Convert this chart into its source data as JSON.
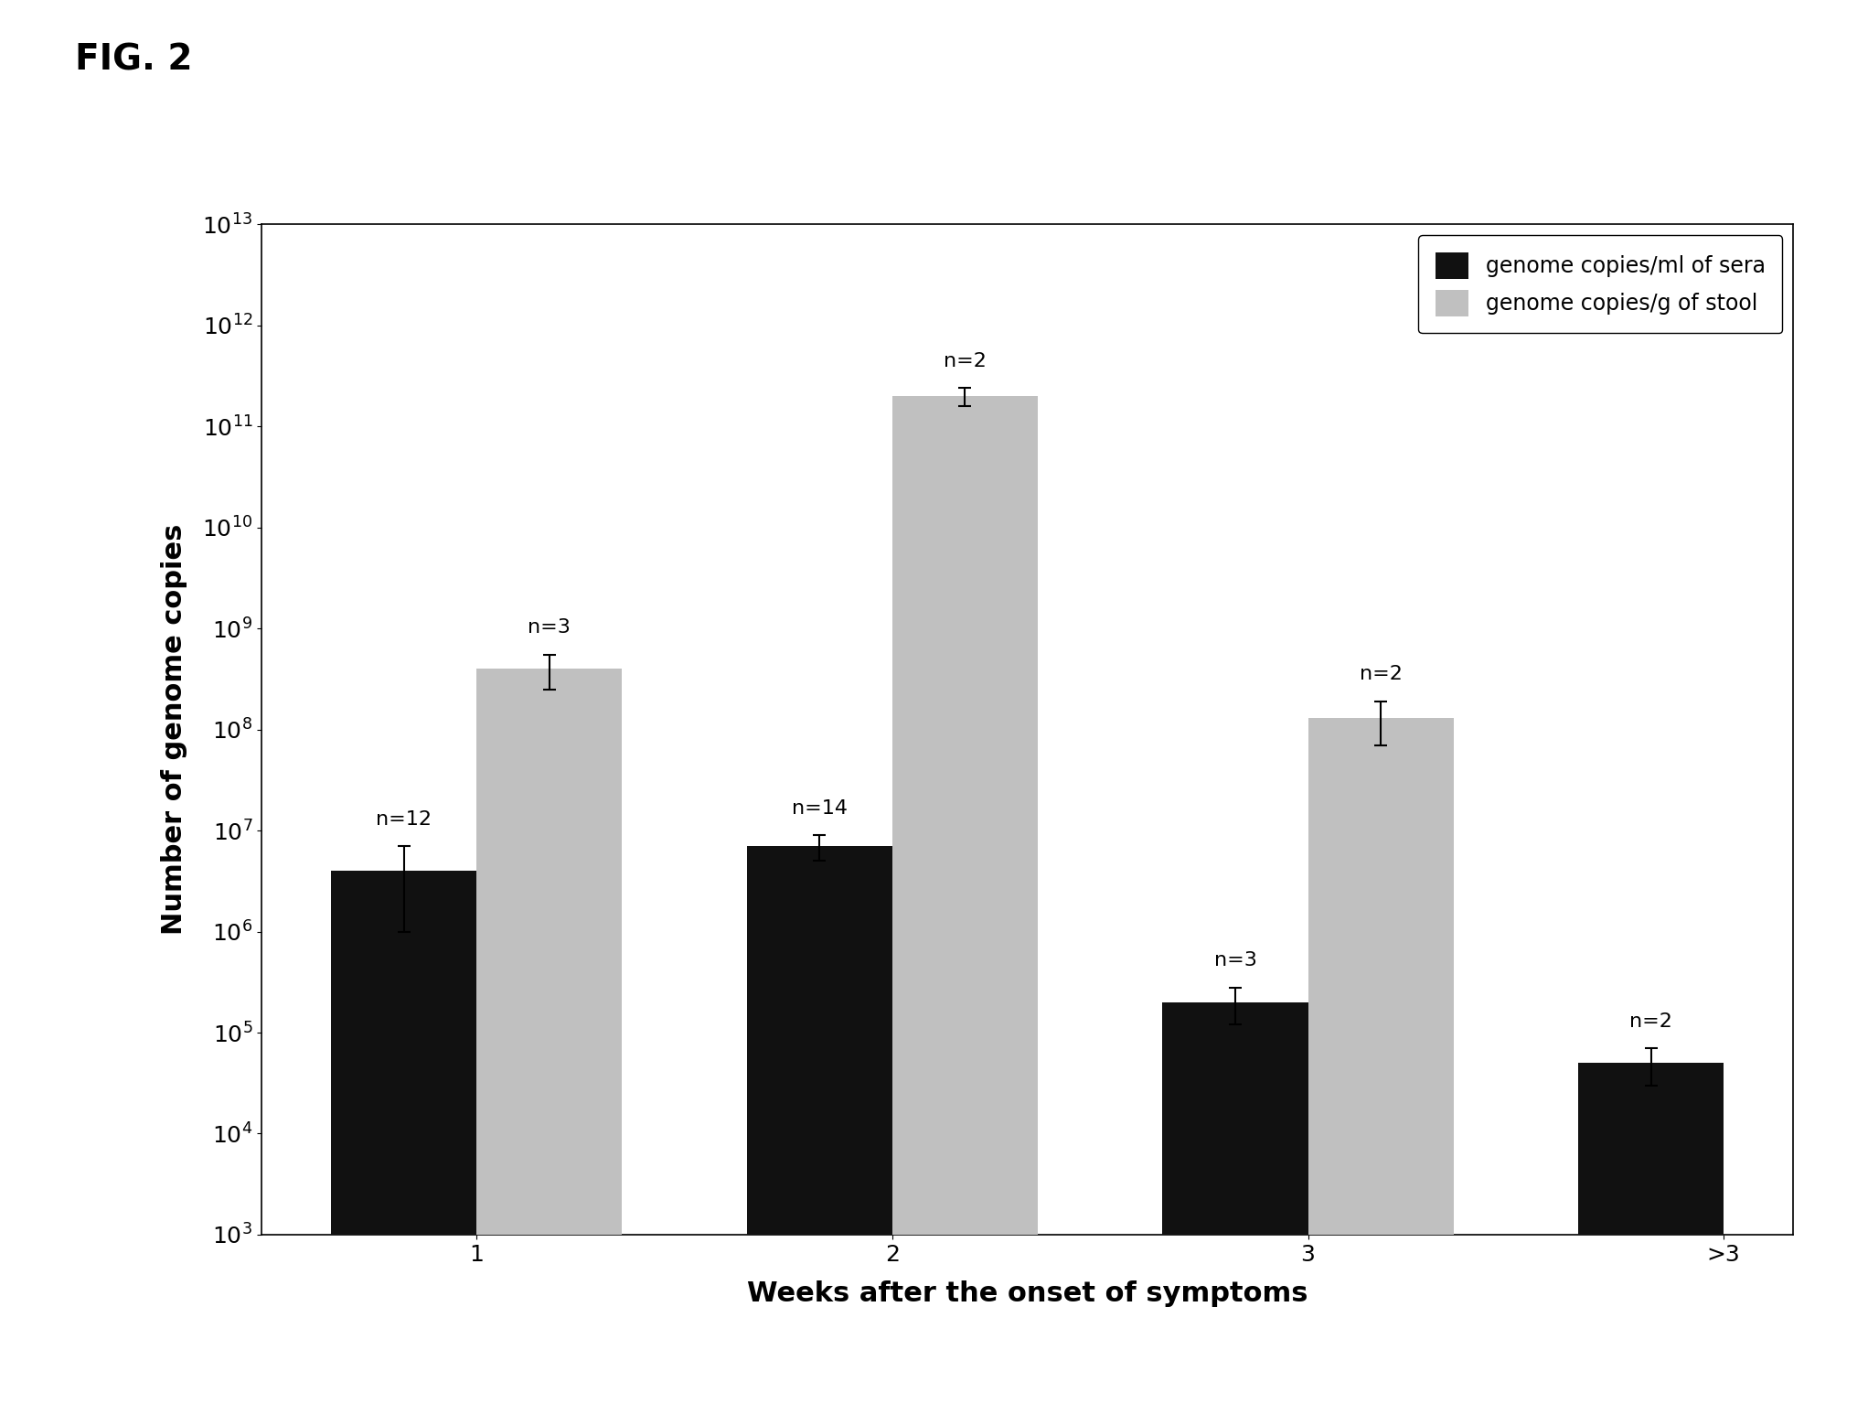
{
  "categories": [
    "1",
    "2",
    "3",
    ">3"
  ],
  "black_bars": [
    4000000.0,
    7000000.0,
    200000.0,
    50000.0
  ],
  "black_errors": [
    3000000.0,
    2000000.0,
    80000.0,
    20000.0
  ],
  "gray_bars": [
    400000000.0,
    200000000000.0,
    130000000.0,
    0
  ],
  "gray_errors": [
    150000000.0,
    40000000000.0,
    60000000.0,
    0
  ],
  "black_labels": [
    "n=12",
    "n=14",
    "n=3",
    "n=2"
  ],
  "gray_labels": [
    "n=3",
    "n=2",
    "n=2",
    ""
  ],
  "black_color": "#111111",
  "gray_color": "#c0c0c0",
  "xlabel": "Weeks after the onset of symptoms",
  "ylabel": "Number of genome copies",
  "legend_black": "genome copies/ml of sera",
  "legend_gray": "genome copies/g of stool",
  "fig_title": "FIG. 2",
  "ymin": 1000.0,
  "ymax": 10000000000000.0,
  "bar_width": 0.35,
  "xlabel_fontsize": 22,
  "ylabel_fontsize": 22,
  "tick_fontsize": 18,
  "legend_fontsize": 17,
  "label_fontsize": 16,
  "title_fontsize": 28,
  "yticks": [
    1000.0,
    10000.0,
    100000.0,
    1000000.0,
    10000000.0,
    100000000.0,
    1000000000.0,
    10000000000.0,
    100000000000.0,
    1000000000000.0,
    10000000000000.0
  ]
}
